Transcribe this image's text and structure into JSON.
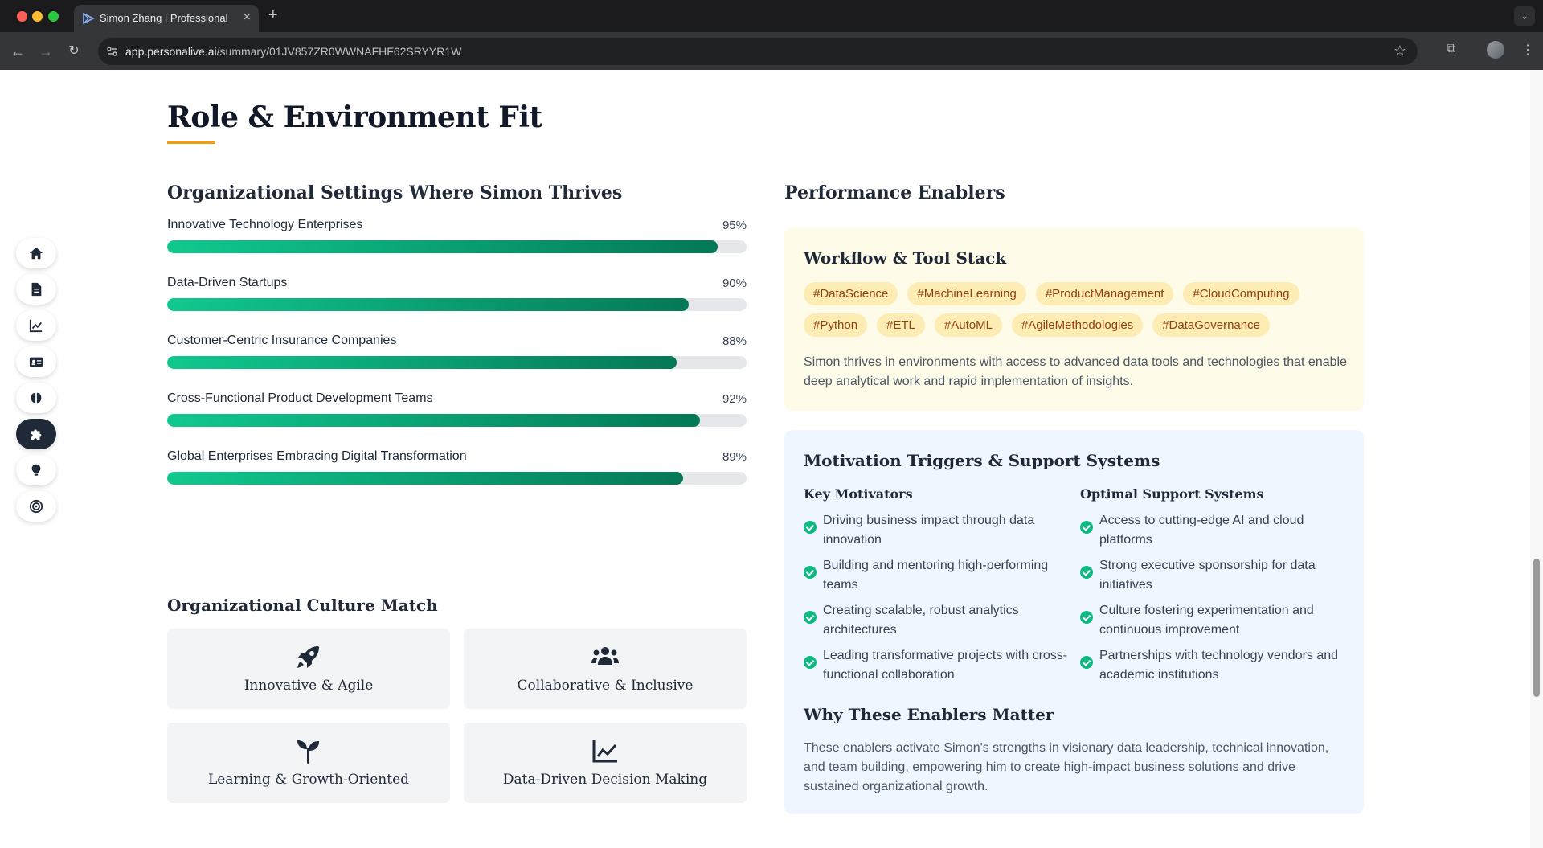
{
  "browser": {
    "tab_title": "Simon Zhang | Professional P",
    "url_host": "app.personalive.ai",
    "url_path": "/summary/01JV857ZR0WWNAFHF62SRYYR1W"
  },
  "side_nav": {
    "items": [
      "home-icon",
      "document-icon",
      "chart-line-icon",
      "id-card-icon",
      "brain-icon",
      "puzzle-piece-icon",
      "lightbulb-icon",
      "target-icon"
    ],
    "active": "puzzle-piece-icon"
  },
  "section": {
    "title": "Role & Environment Fit"
  },
  "org_settings": {
    "title": "Organizational Settings Where Simon Thrives",
    "items": [
      {
        "label": "Innovative Technology Enterprises",
        "percent_text": "95%",
        "value": 95
      },
      {
        "label": "Data-Driven Startups",
        "percent_text": "90%",
        "value": 90
      },
      {
        "label": "Customer-Centric Insurance Companies",
        "percent_text": "88%",
        "value": 88
      },
      {
        "label": "Cross-Functional Product Development Teams",
        "percent_text": "92%",
        "value": 92
      },
      {
        "label": "Global Enterprises Embracing Digital Transformation",
        "percent_text": "89%",
        "value": 89
      }
    ]
  },
  "culture": {
    "title": "Organizational Culture Match",
    "cards": [
      {
        "icon": "rocket-icon",
        "label": "Innovative & Agile"
      },
      {
        "icon": "users-icon",
        "label": "Collaborative & Inclusive"
      },
      {
        "icon": "seedling-icon",
        "label": "Learning & Growth-Oriented"
      },
      {
        "icon": "chart-line-icon",
        "label": "Data-Driven Decision Making"
      }
    ]
  },
  "enablers": {
    "title": "Performance Enablers",
    "workflow": {
      "title": "Workflow & Tool Stack",
      "tags": [
        "#DataScience",
        "#MachineLearning",
        "#ProductManagement",
        "#CloudComputing",
        "#Python",
        "#ETL",
        "#AutoML",
        "#AgileMethodologies",
        "#DataGovernance"
      ],
      "description": "Simon thrives in environments with access to advanced data tools and technologies that enable deep analytical work and rapid implementation of insights."
    },
    "motivation": {
      "title": "Motivation Triggers & Support Systems",
      "motivators_title": "Key Motivators",
      "motivators": [
        "Driving business impact through data innovation",
        "Building and mentoring high-performing teams",
        "Creating scalable, robust analytics architectures",
        "Leading transformative projects with cross-functional collaboration"
      ],
      "support_title": "Optimal Support Systems",
      "support": [
        "Access to cutting-edge AI and cloud platforms",
        "Strong executive sponsorship for data initiatives",
        "Culture fostering experimentation and continuous improvement",
        "Partnerships with technology vendors and academic institutions"
      ],
      "why_title": "Why These Enablers Matter",
      "why_text": "These enablers activate Simon's strengths in visionary data leadership, technical innovation, and team building, empowering him to create high-impact business solutions and drive sustained organizational growth."
    }
  }
}
